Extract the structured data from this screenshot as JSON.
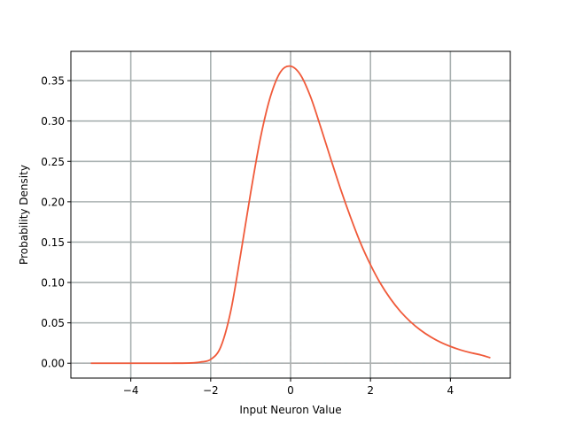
{
  "chart_data": {
    "type": "line",
    "title": "",
    "xlabel": "Input Neuron Value",
    "ylabel": "Probability Density",
    "xlim": [
      -5.5,
      5.5
    ],
    "ylim": [
      -0.0184,
      0.3863
    ],
    "grid": true,
    "x_ticks": [
      -4,
      -2,
      0,
      2,
      4
    ],
    "x_tick_labels": [
      "−4",
      "−2",
      "0",
      "2",
      "4"
    ],
    "y_ticks": [
      0.0,
      0.05,
      0.1,
      0.15,
      0.2,
      0.25,
      0.3,
      0.35
    ],
    "y_tick_labels": [
      "0.00",
      "0.05",
      "0.10",
      "0.15",
      "0.20",
      "0.25",
      "0.30",
      "0.35"
    ],
    "series": [
      {
        "color": "#f05a3a",
        "x": [
          -5,
          -4.5,
          -4,
          -3.5,
          -3,
          -2.5,
          -2.25,
          -2,
          -1.75,
          -1.5,
          -1.25,
          -1,
          -0.75,
          -0.5,
          -0.25,
          0,
          0.25,
          0.5,
          0.75,
          1,
          1.25,
          1.5,
          1.75,
          2,
          2.25,
          2.5,
          2.75,
          3,
          3.25,
          3.5,
          3.75,
          4,
          4.25,
          4.5,
          4.75,
          5
        ],
        "y": [
          0.0,
          0.0,
          0.0,
          0.0,
          0.0,
          0.0003,
          0.0015,
          0.0047,
          0.02,
          0.064,
          0.135,
          0.211,
          0.28,
          0.331,
          0.361,
          0.3679,
          0.357,
          0.33,
          0.293,
          0.254,
          0.216,
          0.181,
          0.149,
          0.122,
          0.0988,
          0.0798,
          0.0641,
          0.0514,
          0.0411,
          0.0328,
          0.0261,
          0.0208,
          0.0165,
          0.0131,
          0.0104,
          0.0067
        ]
      }
    ],
    "reference_lines": {
      "x": 0,
      "y": 0,
      "style": "dashed",
      "color": "#b0b0b0"
    },
    "colors": {
      "grid": "#a9b1b1",
      "axes": "#000000",
      "background": "#ffffff"
    }
  }
}
